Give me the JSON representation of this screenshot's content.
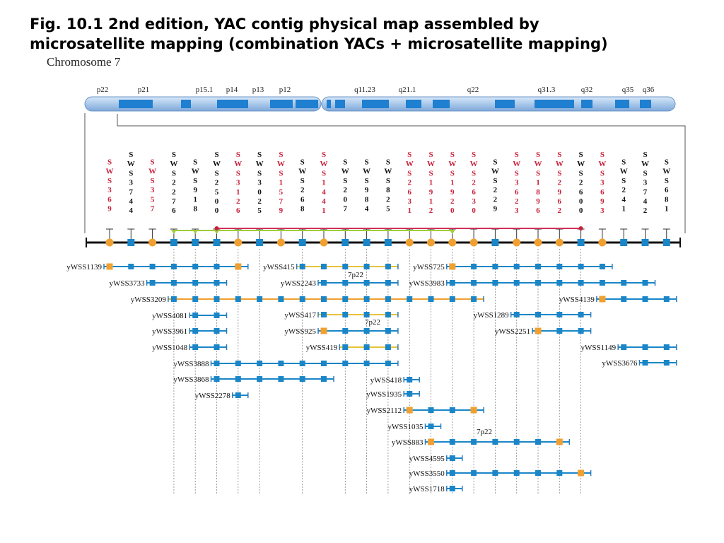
{
  "title_line1": "Fig. 10.1 2nd edition, YAC contig physical map assembled by",
  "title_line2": "microsatellite mapping (combination YACs + microsatellite mapping)",
  "chromosome_label": "Chromosome 7",
  "colors": {
    "chromosome_light": "#a9c8ea",
    "chromosome_band": "#1f7fd0",
    "red_marker": "#c8203a",
    "orange_node": "#f0a030",
    "blue_node": "#1a86c8",
    "green_line": "#9fcc3a",
    "yellow_line": "#e8c23a",
    "pink_line": "#d0305a"
  },
  "bands": [
    "p22",
    "p21",
    "p15.1",
    "p14",
    "p13",
    "p12",
    "q11.23",
    "q21.1",
    "q22",
    "q31.3",
    "q32",
    "q35",
    "q36"
  ],
  "markers": [
    {
      "name": "SWSS369",
      "digits": [
        "3",
        "6",
        "9"
      ],
      "red": true,
      "orange": true
    },
    {
      "name": "SWSS3744",
      "digits": [
        "3",
        "7",
        "4",
        "4"
      ],
      "red": false,
      "orange": false
    },
    {
      "name": "SWSS357",
      "digits": [
        "3",
        "5",
        "7"
      ],
      "red": true,
      "orange": true
    },
    {
      "name": "SWSS2276",
      "digits": [
        "2",
        "2",
        "7",
        "6"
      ],
      "red": false,
      "orange": false
    },
    {
      "name": "SWSS918",
      "digits": [
        "9",
        "1",
        "8"
      ],
      "red": false,
      "orange": false
    },
    {
      "name": "SWSS2500",
      "digits": [
        "2",
        "5",
        "0",
        "0"
      ],
      "red": false,
      "orange": false
    },
    {
      "name": "SWSS3126",
      "digits": [
        "3",
        "1",
        "2",
        "6"
      ],
      "red": true,
      "orange": true
    },
    {
      "name": "SWSS3025",
      "digits": [
        "3",
        "0",
        "2",
        "5"
      ],
      "red": false,
      "orange": false
    },
    {
      "name": "SWSS1579",
      "digits": [
        "1",
        "5",
        "7",
        "9"
      ],
      "red": true,
      "orange": true
    },
    {
      "name": "SWSS268",
      "digits": [
        "2",
        "6",
        "8"
      ],
      "red": false,
      "orange": false
    },
    {
      "name": "SWSS1441",
      "digits": [
        "1",
        "4",
        "4",
        "1"
      ],
      "red": true,
      "orange": true
    },
    {
      "name": "SWSS207",
      "digits": [
        "2",
        "0",
        "7"
      ],
      "red": false,
      "orange": false
    },
    {
      "name": "SWSS984",
      "digits": [
        "9",
        "8",
        "4"
      ],
      "red": false,
      "orange": false
    },
    {
      "name": "SWSS825",
      "digits": [
        "8",
        "2",
        "5"
      ],
      "red": false,
      "orange": false
    },
    {
      "name": "SWSS2631",
      "digits": [
        "2",
        "6",
        "3",
        "1"
      ],
      "red": true,
      "orange": true
    },
    {
      "name": "SWSS1912",
      "digits": [
        "1",
        "9",
        "1",
        "2"
      ],
      "red": true,
      "orange": true
    },
    {
      "name": "SWSS1920",
      "digits": [
        "1",
        "9",
        "2",
        "0"
      ],
      "red": true,
      "orange": true
    },
    {
      "name": "SWSS2630",
      "digits": [
        "2",
        "6",
        "3",
        "0"
      ],
      "red": true,
      "orange": true
    },
    {
      "name": "SWSS229",
      "digits": [
        "2",
        "2",
        "9"
      ],
      "red": false,
      "orange": false
    },
    {
      "name": "SWSS3623",
      "digits": [
        "3",
        "6",
        "2",
        "3"
      ],
      "red": true,
      "orange": true
    },
    {
      "name": "SWSS1896",
      "digits": [
        "1",
        "8",
        "9",
        "6"
      ],
      "red": true,
      "orange": true
    },
    {
      "name": "SWSS2962",
      "digits": [
        "2",
        "9",
        "6",
        "2"
      ],
      "red": true,
      "orange": true
    },
    {
      "name": "SWSS2600",
      "digits": [
        "2",
        "6",
        "0",
        "0"
      ],
      "red": false,
      "orange": false
    },
    {
      "name": "SWSS3693",
      "digits": [
        "3",
        "6",
        "9",
        "3"
      ],
      "red": true,
      "orange": true
    },
    {
      "name": "SWSS241",
      "digits": [
        "2",
        "4",
        "1"
      ],
      "red": false,
      "orange": false
    },
    {
      "name": "SWSS3742",
      "digits": [
        "3",
        "7",
        "4",
        "2"
      ],
      "red": false,
      "orange": false
    },
    {
      "name": "SWSS681",
      "digits": [
        "6",
        "8",
        "1"
      ],
      "red": false,
      "orange": false
    }
  ],
  "contig_links": {
    "green": {
      "from_marker": 3,
      "to_marker": 16
    },
    "pink": {
      "from_marker": 6,
      "to_marker": 22
    }
  },
  "yacs": [
    {
      "name": "yWSS1139",
      "start": 0,
      "end": 6,
      "color": "blue",
      "orange_start": true,
      "orange_end": true
    },
    {
      "name": "yWSS3733",
      "start": 2,
      "end": 5,
      "color": "blue",
      "orange_start": false,
      "orange_end": false
    },
    {
      "name": "yWSS3209",
      "start": 3,
      "end": 17,
      "color": "orange",
      "orange_start": false,
      "orange_end": false
    },
    {
      "name": "yWSS4081",
      "start": 4,
      "end": 5,
      "color": "blue",
      "orange_start": false,
      "orange_end": false
    },
    {
      "name": "yWSS3961",
      "start": 4,
      "end": 5,
      "color": "blue",
      "orange_start": false,
      "orange_end": false
    },
    {
      "name": "yWSS1048",
      "start": 4,
      "end": 5,
      "color": "blue",
      "orange_start": false,
      "orange_end": false
    },
    {
      "name": "yWSS3888",
      "start": 5,
      "end": 13,
      "color": "blue",
      "orange_start": false,
      "orange_end": false
    },
    {
      "name": "yWSS3868",
      "start": 5,
      "end": 10,
      "color": "blue",
      "orange_start": false,
      "orange_end": false
    },
    {
      "name": "yWSS2278",
      "start": 6,
      "end": 6,
      "color": "blue",
      "orange_start": false,
      "orange_end": false
    },
    {
      "name": "yWSS415",
      "start": 9,
      "end": 13,
      "color": "yellow",
      "orange_start": false,
      "orange_end": false
    },
    {
      "name": "yWSS2243",
      "start": 10,
      "end": 13,
      "color": "blue",
      "orange_start": false,
      "orange_end": false
    },
    {
      "name": "yWSS417",
      "start": 10,
      "end": 13,
      "color": "yellow",
      "orange_start": false,
      "orange_end": false
    },
    {
      "name": "yWSS925",
      "start": 10,
      "end": 13,
      "color": "blue",
      "orange_start": true,
      "orange_end": false
    },
    {
      "name": "yWSS419",
      "start": 11,
      "end": 13,
      "color": "yellow",
      "orange_start": false,
      "orange_end": false
    },
    {
      "name": "yWSS418",
      "start": 14,
      "end": 14,
      "color": "blue",
      "orange_start": false,
      "orange_end": false
    },
    {
      "name": "yWSS1935",
      "start": 14,
      "end": 14,
      "color": "blue",
      "orange_start": false,
      "orange_end": false
    },
    {
      "name": "yWSS2112",
      "start": 14,
      "end": 17,
      "color": "blue",
      "orange_start": true,
      "orange_end": true
    },
    {
      "name": "yWSS1035",
      "start": 15,
      "end": 15,
      "color": "blue",
      "orange_start": false,
      "orange_end": false
    },
    {
      "name": "yWSS883",
      "start": 15,
      "end": 21,
      "color": "blue",
      "orange_start": true,
      "orange_end": true
    },
    {
      "name": "yWSS4595",
      "start": 16,
      "end": 16,
      "color": "blue",
      "orange_start": false,
      "orange_end": false
    },
    {
      "name": "yWSS3550",
      "start": 16,
      "end": 22,
      "color": "blue",
      "orange_start": false,
      "orange_end": true
    },
    {
      "name": "yWSS1718",
      "start": 16,
      "end": 16,
      "color": "blue",
      "orange_start": false,
      "orange_end": false
    },
    {
      "name": "yWSS725",
      "start": 16,
      "end": 23,
      "color": "blue",
      "orange_start": true,
      "orange_end": false
    },
    {
      "name": "yWSS3983",
      "start": 16,
      "end": 25,
      "color": "blue",
      "orange_start": false,
      "orange_end": false
    },
    {
      "name": "yWSS1289",
      "start": 19,
      "end": 22,
      "color": "blue",
      "orange_start": false,
      "orange_end": false
    },
    {
      "name": "yWSS2251",
      "start": 20,
      "end": 22,
      "color": "blue",
      "orange_start": true,
      "orange_end": false
    },
    {
      "name": "yWSS4139",
      "start": 23,
      "end": 26,
      "color": "blue",
      "orange_start": true,
      "orange_end": false
    },
    {
      "name": "yWSS1149",
      "start": 24,
      "end": 26,
      "color": "blue",
      "orange_start": false,
      "orange_end": false
    },
    {
      "name": "yWSS3676",
      "start": 25,
      "end": 26,
      "color": "blue",
      "orange_start": false,
      "orange_end": false
    }
  ],
  "annotations": [
    "7p22",
    "7p22",
    "7p22"
  ]
}
